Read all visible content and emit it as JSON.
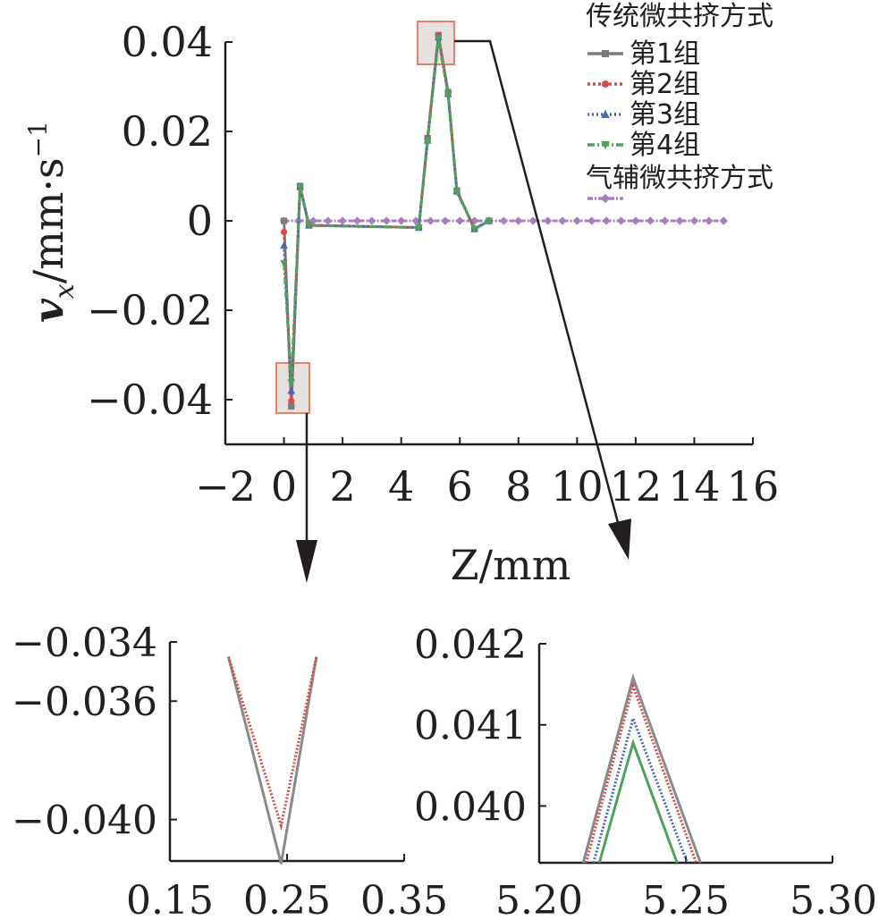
{
  "chart_data": [
    {
      "type": "line",
      "xlabel": "Z/mm",
      "ylabel_main": "v",
      "ylabel_sub": "x",
      "ylabel_units": "/mm·s",
      "ylabel_exp": "−1",
      "xlim": [
        -2,
        16
      ],
      "ylim": [
        -0.05,
        0.04
      ],
      "x_ticks": [
        -2,
        0,
        2,
        4,
        6,
        8,
        10,
        12,
        14,
        16
      ],
      "x_tick_labels": [
        "−2",
        "0",
        "2",
        "4",
        "6",
        "8",
        "10",
        "12",
        "14",
        "16"
      ],
      "y_ticks": [
        0.04,
        0.02,
        0,
        -0.02,
        -0.04
      ],
      "y_tick_labels": [
        "0.04",
        "0.02",
        "0",
        "−0.02",
        "−0.04"
      ],
      "legend": {
        "placement": "top-right",
        "group1_title": "传统微共挤方式",
        "group2_title": "气辅微共挤方式"
      },
      "series": [
        {
          "name": "第1组",
          "color": "#7a7a7a",
          "marker": "square",
          "dash": "",
          "x": [
            0,
            0.25,
            0.55,
            0.85,
            4.6,
            4.9,
            5.27,
            5.6,
            5.9,
            6.5,
            7.0
          ],
          "y": [
            0,
            -0.0415,
            0.0078,
            -0.001,
            -0.0015,
            0.0185,
            0.04155,
            0.0288,
            0.0068,
            -0.0018,
            0
          ]
        },
        {
          "name": "第2组",
          "color": "#d94a4a",
          "marker": "circle",
          "dash": "3,3",
          "x": [
            0,
            0.25,
            0.55,
            0.85,
            4.6,
            4.9,
            5.27,
            5.6,
            5.9,
            6.5,
            7.0
          ],
          "y": [
            -0.0025,
            -0.0403,
            0.0077,
            -0.001,
            -0.0015,
            0.0183,
            0.04148,
            0.0286,
            0.0067,
            -0.0018,
            0
          ]
        },
        {
          "name": "第3组",
          "color": "#4a6ab0",
          "marker": "triangle-up",
          "dash": "2,3",
          "x": [
            0,
            0.25,
            0.55,
            0.85,
            4.6,
            4.9,
            5.27,
            5.6,
            5.9,
            6.5,
            7.0
          ],
          "y": [
            -0.0055,
            -0.038,
            0.0076,
            -0.001,
            -0.0015,
            0.018,
            0.04108,
            0.0284,
            0.0066,
            -0.0018,
            0
          ]
        },
        {
          "name": "第4组",
          "color": "#4da35a",
          "marker": "triangle-down",
          "dash": "8,3,2,3",
          "x": [
            0,
            0.25,
            0.55,
            0.85,
            4.6,
            4.9,
            5.27,
            5.6,
            5.9,
            6.5,
            7.0
          ],
          "y": [
            -0.0095,
            -0.0362,
            0.0075,
            -0.001,
            -0.0015,
            0.0178,
            0.04078,
            0.0282,
            0.0065,
            -0.0018,
            0
          ]
        },
        {
          "name": "",
          "color": "#a97ec0",
          "marker": "diamond",
          "dash": "6,2,2,2",
          "x": [
            0,
            0.5,
            1.0,
            1.5,
            2.0,
            2.5,
            3.0,
            3.5,
            4.0,
            4.5,
            5.0,
            5.5,
            6.0,
            6.5,
            7.0,
            7.5,
            8.0,
            8.5,
            9.0,
            9.5,
            10.0,
            10.5,
            11.0,
            11.5,
            12.0,
            12.5,
            13.0,
            13.5,
            14.0,
            14.5,
            15.0
          ],
          "y": [
            0,
            0,
            0,
            0,
            0,
            0,
            0,
            0,
            0,
            0,
            0,
            0,
            0,
            0,
            0,
            0,
            0,
            0,
            0,
            0,
            0,
            0,
            0,
            0,
            0,
            0,
            0,
            0,
            0,
            0,
            0
          ]
        }
      ]
    },
    {
      "type": "line",
      "xlim": [
        0.15,
        0.35
      ],
      "ylim": [
        -0.0414,
        -0.034
      ],
      "x_ticks": [
        0.15,
        0.25,
        0.35
      ],
      "x_tick_labels": [
        "0.15",
        "0.25",
        "0.35"
      ],
      "y_ticks": [
        -0.034,
        -0.036,
        -0.04
      ],
      "y_tick_labels": [
        "−0.034",
        "−0.036",
        "−0.040"
      ],
      "series": [
        {
          "name": "第1组",
          "color": "#8a8a8a",
          "dash": "",
          "x": [
            0.2,
            0.245,
            0.275
          ],
          "y": [
            -0.0345,
            -0.0415,
            -0.0345
          ]
        },
        {
          "name": "第2组",
          "color": "#d94a4a",
          "dash": "2,2",
          "x": [
            0.2,
            0.245,
            0.275
          ],
          "y": [
            -0.0345,
            -0.0402,
            -0.0345
          ]
        }
      ]
    },
    {
      "type": "line",
      "xlim": [
        5.2,
        5.3
      ],
      "ylim": [
        0.0393,
        0.042
      ],
      "x_ticks": [
        5.2,
        5.25,
        5.3
      ],
      "x_tick_labels": [
        "5.20",
        "5.25",
        "5.30"
      ],
      "y_ticks": [
        0.042,
        0.041,
        0.04
      ],
      "y_tick_labels": [
        "0.042",
        "0.041",
        "0.040"
      ],
      "series": [
        {
          "name": "第1组",
          "color": "#8a8a8a",
          "dash": "",
          "x": [
            5.215,
            5.232,
            5.255
          ],
          "y": [
            0.0393,
            0.04158,
            0.0393
          ]
        },
        {
          "name": "第2组",
          "color": "#d94a4a",
          "dash": "2,2",
          "x": [
            5.216,
            5.232,
            5.2535
          ],
          "y": [
            0.0393,
            0.04148,
            0.0393
          ]
        },
        {
          "name": "第3组",
          "color": "#4a6ab0",
          "dash": "2,2",
          "x": [
            5.2185,
            5.232,
            5.2505
          ],
          "y": [
            0.0393,
            0.04108,
            0.0393
          ]
        },
        {
          "name": "第4组",
          "color": "#4da35a",
          "dash": "",
          "x": [
            5.2205,
            5.232,
            5.247
          ],
          "y": [
            0.0393,
            0.04078,
            0.0393
          ]
        }
      ]
    }
  ]
}
